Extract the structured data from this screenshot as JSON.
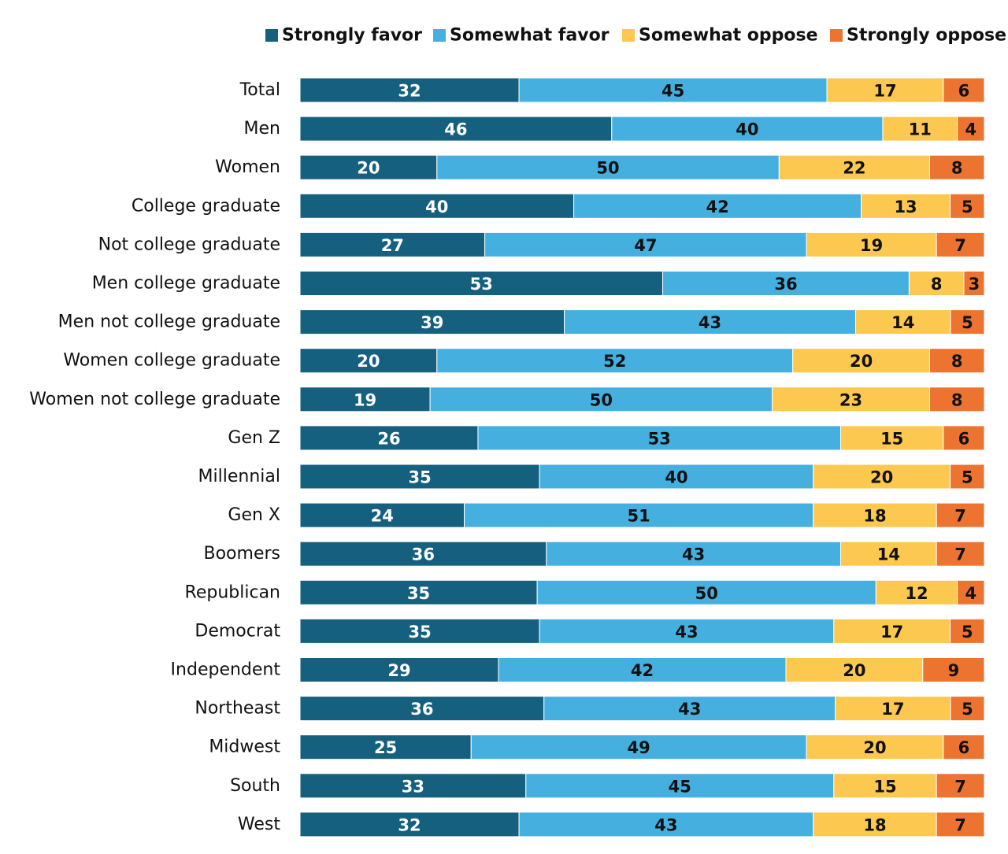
{
  "chart_data": {
    "type": "bar",
    "orientation": "horizontal",
    "stacked": true,
    "normalized_percent": true,
    "legend_position": "top-right",
    "grid": false,
    "categories": [
      "Total",
      "Men",
      "Women",
      "College graduate",
      "Not college graduate",
      "Men college graduate",
      "Men not college graduate",
      "Women college graduate",
      "Women not college graduate",
      "Gen Z",
      "Millennial",
      "Gen X",
      "Boomers",
      "Republican",
      "Democrat",
      "Independent",
      "Northeast",
      "Midwest",
      "South",
      "West"
    ],
    "series": [
      {
        "name": "Strongly favor",
        "color": "#16607f",
        "label_color": "#ffffff",
        "values": [
          32,
          46,
          20,
          40,
          27,
          53,
          39,
          20,
          19,
          26,
          35,
          24,
          36,
          35,
          35,
          29,
          36,
          25,
          33,
          32
        ]
      },
      {
        "name": "Somewhat favor",
        "color": "#45b0e0",
        "label_color": "#111111",
        "values": [
          45,
          40,
          50,
          42,
          47,
          36,
          43,
          52,
          50,
          53,
          40,
          51,
          43,
          50,
          43,
          42,
          43,
          49,
          45,
          43
        ]
      },
      {
        "name": "Somewhat oppose",
        "color": "#fcc84f",
        "label_color": "#111111",
        "values": [
          17,
          11,
          22,
          13,
          19,
          8,
          14,
          20,
          23,
          15,
          20,
          18,
          14,
          12,
          17,
          20,
          17,
          20,
          15,
          18
        ]
      },
      {
        "name": "Strongly oppose",
        "color": "#ec7430",
        "label_color": "#111111",
        "values": [
          6,
          4,
          8,
          5,
          7,
          3,
          5,
          8,
          8,
          6,
          5,
          7,
          7,
          4,
          5,
          9,
          5,
          6,
          7,
          7
        ]
      }
    ]
  }
}
